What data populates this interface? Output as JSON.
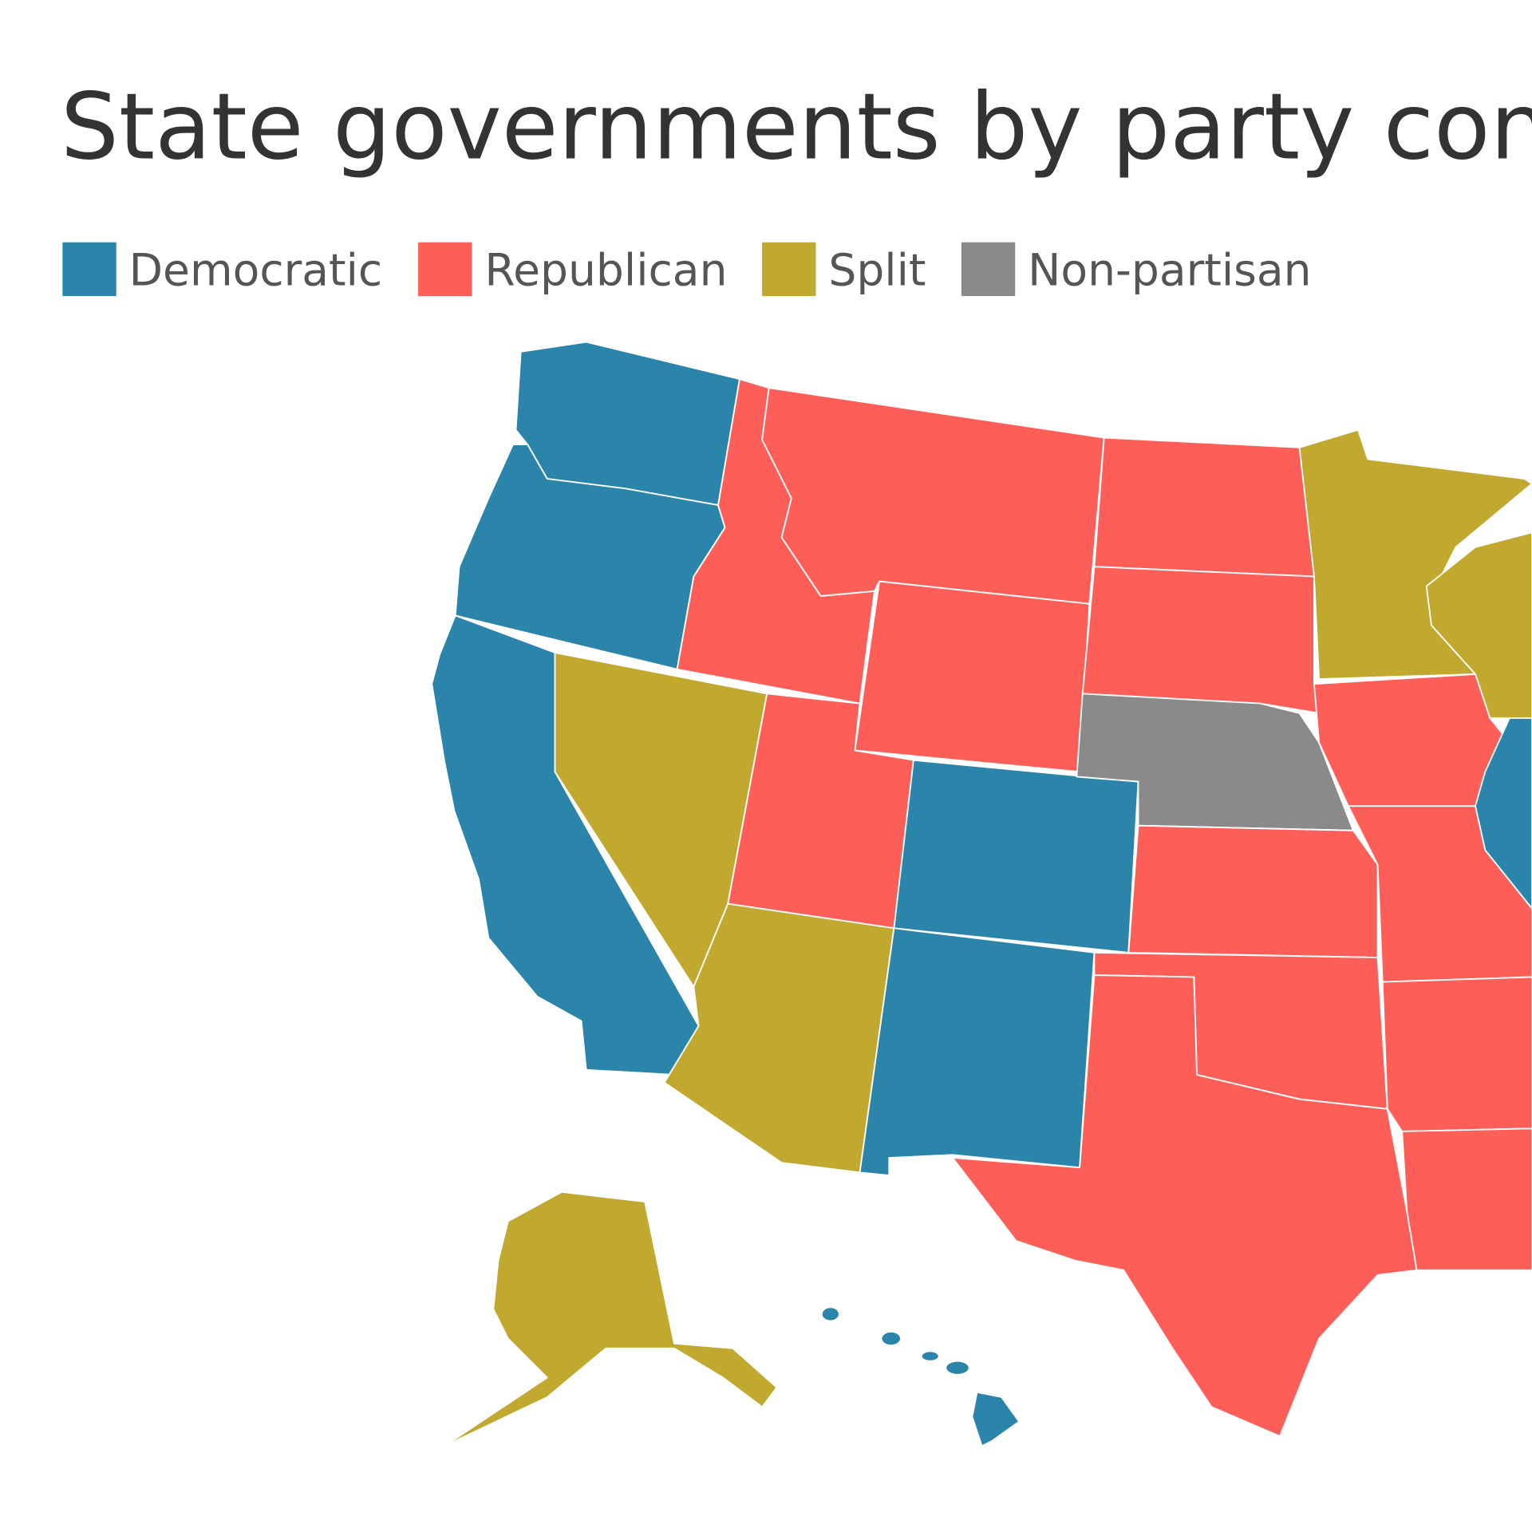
{
  "title": "State governments by party con",
  "legend": [
    {
      "label": "Democratic",
      "color": "#2b84aa"
    },
    {
      "label": "Republican",
      "color": "#fd5f58"
    },
    {
      "label": "Split",
      "color": "#c1a82f"
    },
    {
      "label": "Non-partisan",
      "color": "#8a8a8a"
    }
  ]
}
